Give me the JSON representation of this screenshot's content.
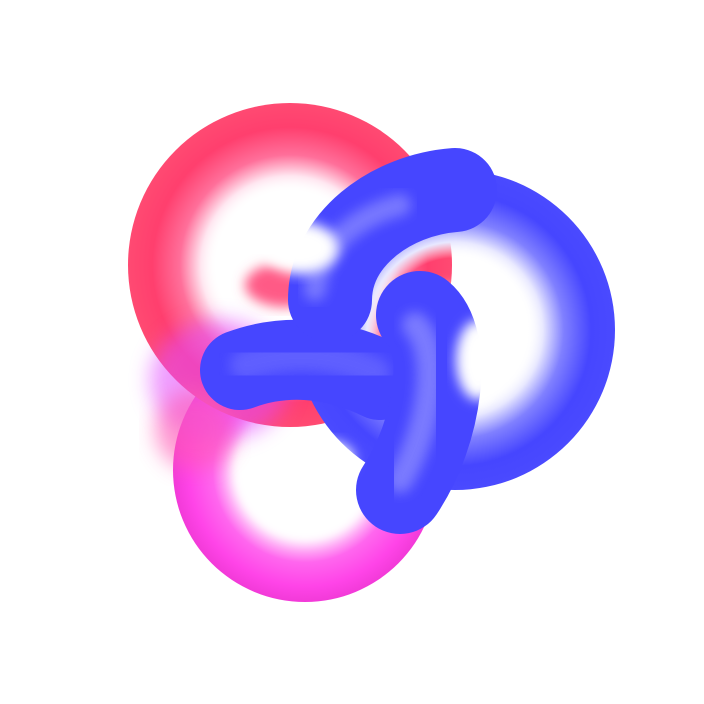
{
  "scene": {
    "subject_icon": "trefoil-knot-icon",
    "colors": {
      "background": "#ffffff",
      "pink_red": "#ff3f6e",
      "magenta": "#ff44e8",
      "blue": "#4646ff",
      "highlight": "#ffffff"
    }
  }
}
